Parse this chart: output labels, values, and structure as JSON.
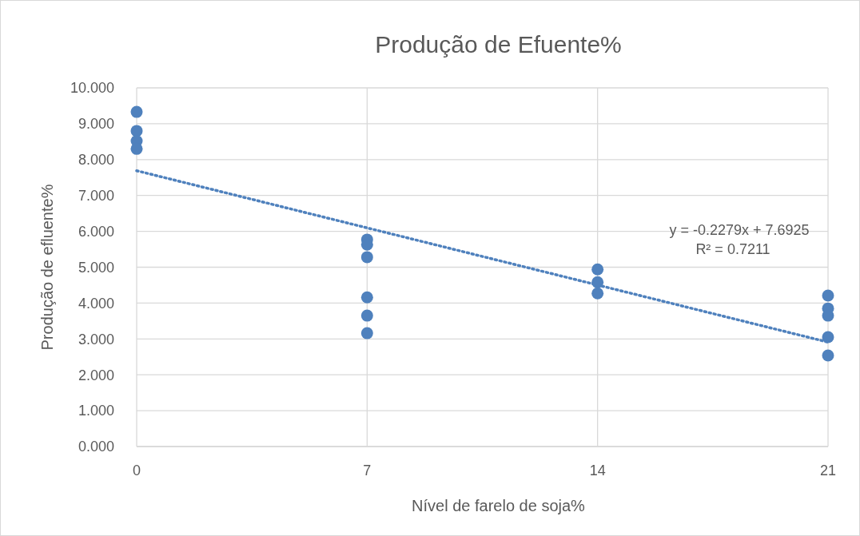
{
  "chart_data": {
    "type": "scatter",
    "title": "Produção de Efuente%",
    "xlabel": "Nível de farelo de soja%",
    "ylabel": "Produção de efluente%",
    "xlim": [
      0,
      21
    ],
    "xticks": [
      0,
      7,
      14,
      21
    ],
    "ylim": [
      0,
      10
    ],
    "yticks": [
      {
        "value": 0,
        "label": "0.000"
      },
      {
        "value": 1,
        "label": "1.000"
      },
      {
        "value": 2,
        "label": "2.000"
      },
      {
        "value": 3,
        "label": "3.000"
      },
      {
        "value": 4,
        "label": "4.000"
      },
      {
        "value": 5,
        "label": "5.000"
      },
      {
        "value": 6,
        "label": "6.000"
      },
      {
        "value": 7,
        "label": "7.000"
      },
      {
        "value": 8,
        "label": "8.000"
      },
      {
        "value": 9,
        "label": "9.000"
      },
      {
        "value": 10,
        "label": "10.000"
      }
    ],
    "grid": true,
    "series": [
      {
        "color": "#4f81bd",
        "marker": "circle",
        "x": [
          0,
          0,
          0,
          0,
          7,
          7,
          7,
          7,
          7,
          7,
          14,
          14,
          14,
          21,
          21,
          21,
          21,
          21
        ],
        "values": [
          9.33,
          8.8,
          8.52,
          8.3,
          5.77,
          5.63,
          5.28,
          4.16,
          3.65,
          3.16,
          4.94,
          4.58,
          4.27,
          4.21,
          3.85,
          3.65,
          3.05,
          2.54
        ]
      },
      {
        "type": "line",
        "color": "#4f81bd",
        "line_style": "dotted",
        "x": [
          0,
          21
        ],
        "values": [
          7.69,
          2.91
        ]
      }
    ],
    "annotations": [
      "y = -0.2279x + 7.6925",
      "R² = 0.7211"
    ]
  }
}
